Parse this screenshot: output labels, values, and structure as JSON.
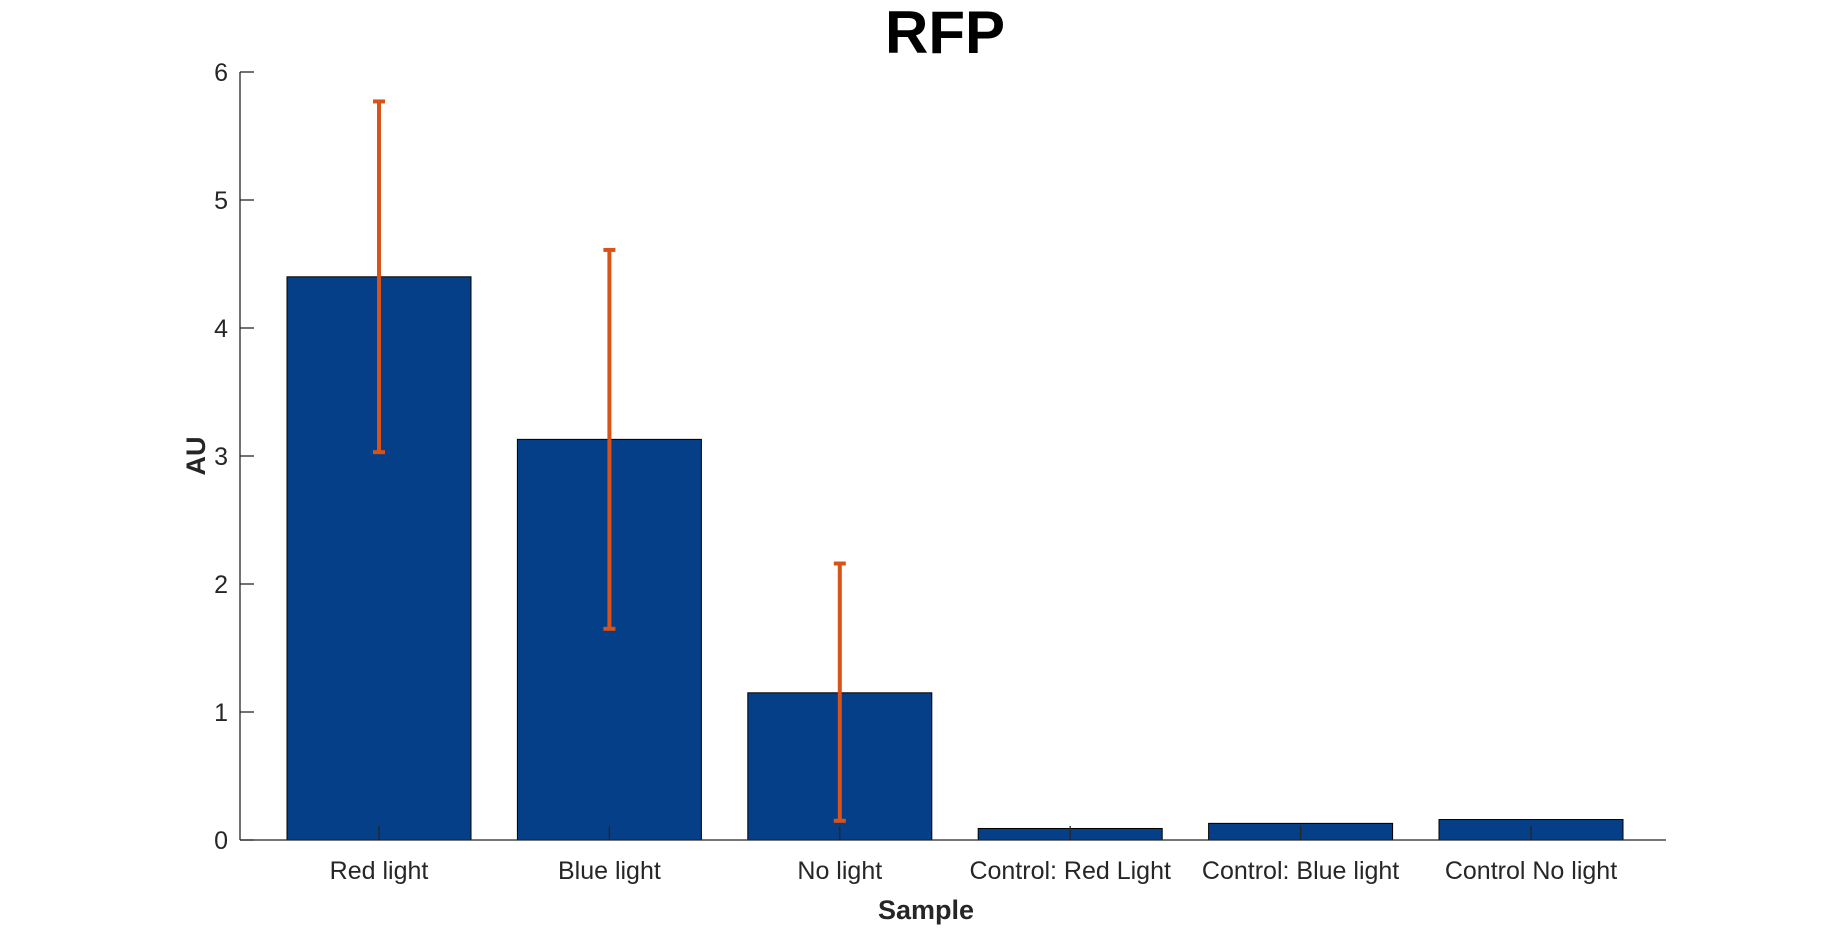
{
  "chart_data": {
    "type": "bar",
    "title": "RFP",
    "xlabel": "Sample",
    "ylabel": "AU",
    "categories": [
      "Red light",
      "Blue light",
      "No light",
      "Control: Red Light",
      "Control: Blue light",
      "Control No light"
    ],
    "values": [
      4.4,
      3.13,
      1.15,
      0.09,
      0.13,
      0.16
    ],
    "error_bars": {
      "lower": [
        3.03,
        1.65,
        0.15,
        null,
        null,
        null
      ],
      "upper": [
        5.77,
        4.61,
        2.16,
        null,
        null,
        null
      ]
    },
    "ylim": [
      0,
      6
    ],
    "yticks": [
      0,
      1,
      2,
      3,
      4,
      5,
      6
    ],
    "grid": false,
    "colors": {
      "bar": "#053f87",
      "error_bar": "#d95319",
      "axis": "#262626"
    }
  }
}
